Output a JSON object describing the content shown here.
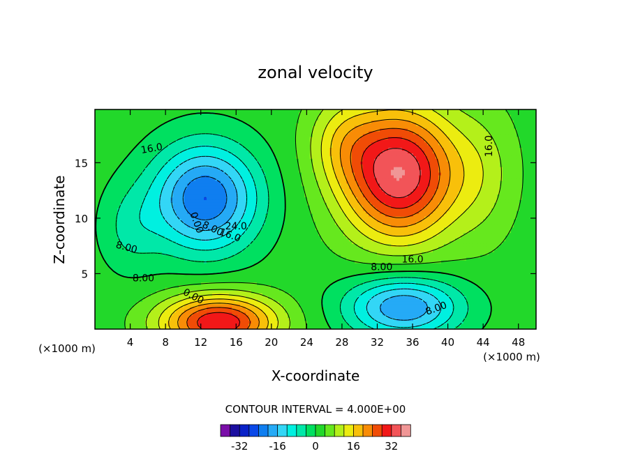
{
  "chart_data": {
    "type": "heatmap",
    "title": "zonal velocity",
    "xlabel": "X-coordinate",
    "ylabel": "Z-coordinate",
    "x_unit": "(×1000 m)",
    "xlim": [
      0,
      50
    ],
    "ylim": [
      0,
      19.8
    ],
    "x_ticks": [
      4,
      8,
      12,
      16,
      20,
      24,
      28,
      32,
      36,
      40,
      44,
      48
    ],
    "y_ticks": [
      5,
      10,
      15
    ],
    "contour_interval_text": "CONTOUR INTERVAL = 4.000E+00",
    "contour_labels": [
      "16.0",
      "0.00",
      "8.00",
      "16.0",
      "24.0",
      "8.00",
      "8.00",
      "0.00",
      "8.00",
      "16.0",
      "8.00",
      "16.0"
    ],
    "colorbar": {
      "ticks": [
        "-32",
        "-16",
        "0",
        "16",
        "32"
      ],
      "levels": [
        -36,
        -32,
        -28,
        -24,
        -20,
        -16,
        -12,
        -8,
        -4,
        0,
        4,
        8,
        12,
        16,
        20,
        24,
        28,
        32,
        36
      ],
      "colors": [
        "#7a0ea8",
        "#1c0fa0",
        "#0a22c8",
        "#0a48e8",
        "#0f7ef0",
        "#25aaf6",
        "#33d6f6",
        "#00f0e0",
        "#00e8a8",
        "#00e060",
        "#22d82a",
        "#66e81e",
        "#b4f01a",
        "#ecec10",
        "#f8c00a",
        "#f88c06",
        "#f04c06",
        "#f21818",
        "#f25458",
        "#f09696"
      ]
    },
    "features": [
      {
        "name": "upper-left negative core",
        "x": 12,
        "z": 12,
        "value": -24
      },
      {
        "name": "upper-right positive core",
        "x": 35,
        "z": 14,
        "value": 32
      },
      {
        "name": "lower-left positive core",
        "x": 14,
        "z": 1.3,
        "value": 28
      },
      {
        "name": "lower-right negative core",
        "x": 35,
        "z": 2,
        "value": -20
      }
    ]
  }
}
